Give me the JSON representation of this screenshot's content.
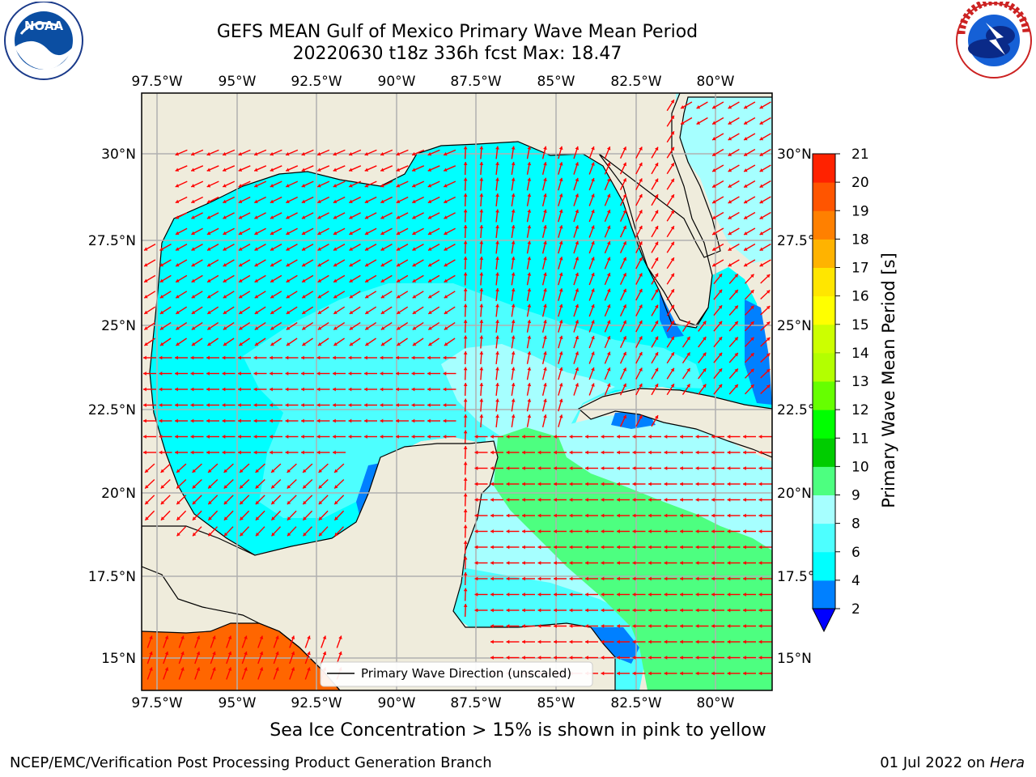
{
  "header": {
    "title_line1": "GEFS MEAN Gulf of Mexico Primary Wave Mean Period",
    "title_line2": "20220630 t18z 336h fcst   Max: 18.47"
  },
  "logos": {
    "left": {
      "name": "noaa-logo",
      "text": "NOAA"
    },
    "right": {
      "name": "national-weather-service-logo"
    }
  },
  "map": {
    "lon_ticks": [
      "97.5°W",
      "95°W",
      "92.5°W",
      "90°W",
      "87.5°W",
      "85°W",
      "82.5°W",
      "80°W"
    ],
    "lat_ticks": [
      "30°N",
      "27.5°N",
      "25°N",
      "22.5°N",
      "20°N",
      "17.5°N",
      "15°N"
    ],
    "lon_range": [
      -98,
      -78.2
    ],
    "lat_range": [
      14,
      31.7
    ],
    "colors": {
      "land": "#efecdc",
      "wave_4_6": "#00ffff",
      "wave_6_8": "#4dffff",
      "wave_8_9": "#a6ffff",
      "wave_9_10": "#4dff80",
      "wave_2_4": "#0080ff",
      "wave_18_19": "#ff6600",
      "arrow": "#ff0000"
    },
    "legend": "Primary Wave Direction (unscaled)"
  },
  "colorbar": {
    "label": "Primary Wave Mean Period [s]",
    "ticks": [
      "2",
      "4",
      "6",
      "8",
      "9",
      "10",
      "11",
      "12",
      "13",
      "14",
      "15",
      "16",
      "17",
      "18",
      "19",
      "20",
      "21"
    ],
    "colors": [
      "#0080ff",
      "#00ffff",
      "#4dffff",
      "#a6ffff",
      "#4dff80",
      "#00cc00",
      "#00ff00",
      "#66ff00",
      "#b3ff00",
      "#ccff00",
      "#ffff00",
      "#ffe600",
      "#ffb300",
      "#ff8000",
      "#ff5500",
      "#ff2200"
    ],
    "under_color": "#0000ff"
  },
  "footer": {
    "sea_ice_note": "Sea Ice Concentration > 15% is shown in pink to yellow",
    "left": "NCEP/EMC/Verification Post Processing Product Generation Branch",
    "right_date": "01 Jul 2022 on",
    "right_host": "Hera"
  }
}
